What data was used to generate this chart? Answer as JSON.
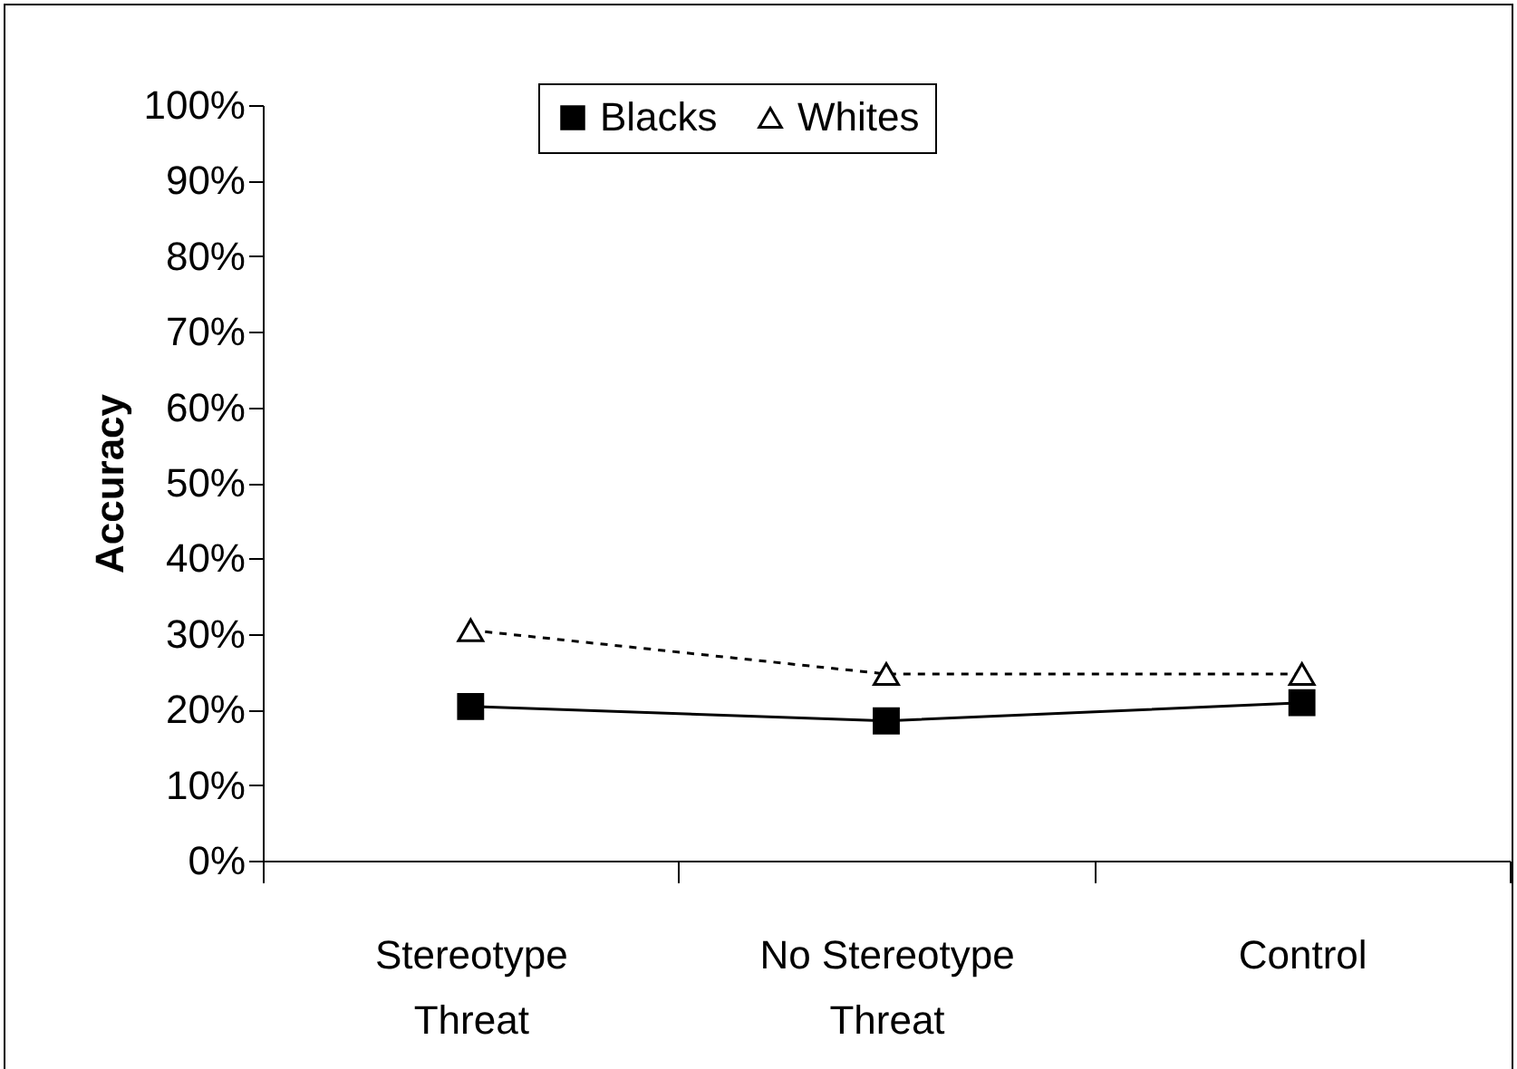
{
  "chart_data": {
    "type": "line",
    "ylabel": "Accuracy",
    "categories": [
      "Stereotype Threat",
      "No Stereotype Threat",
      "Control"
    ],
    "series": [
      {
        "name": "Blacks",
        "color": "#000000",
        "values": [
          20.4,
          18.5,
          20.9
        ],
        "marker": "square",
        "line_style": "solid"
      },
      {
        "name": "Whites",
        "color": "#000000",
        "values": [
          30.5,
          24.7,
          24.7
        ],
        "marker": "triangle",
        "line_style": "dashed"
      }
    ],
    "ylim": [
      0,
      100
    ],
    "yticks": [
      {
        "value": 0,
        "label": "0%"
      },
      {
        "value": 10,
        "label": "10%"
      },
      {
        "value": 20,
        "label": "20%"
      },
      {
        "value": 30,
        "label": "30%"
      },
      {
        "value": 40,
        "label": "40%"
      },
      {
        "value": 50,
        "label": "50%"
      },
      {
        "value": 60,
        "label": "60%"
      },
      {
        "value": 70,
        "label": "70%"
      },
      {
        "value": 80,
        "label": "80%"
      },
      {
        "value": 90,
        "label": "90%"
      },
      {
        "value": 100,
        "label": "100%"
      }
    ],
    "grid": false,
    "legend": "top"
  }
}
